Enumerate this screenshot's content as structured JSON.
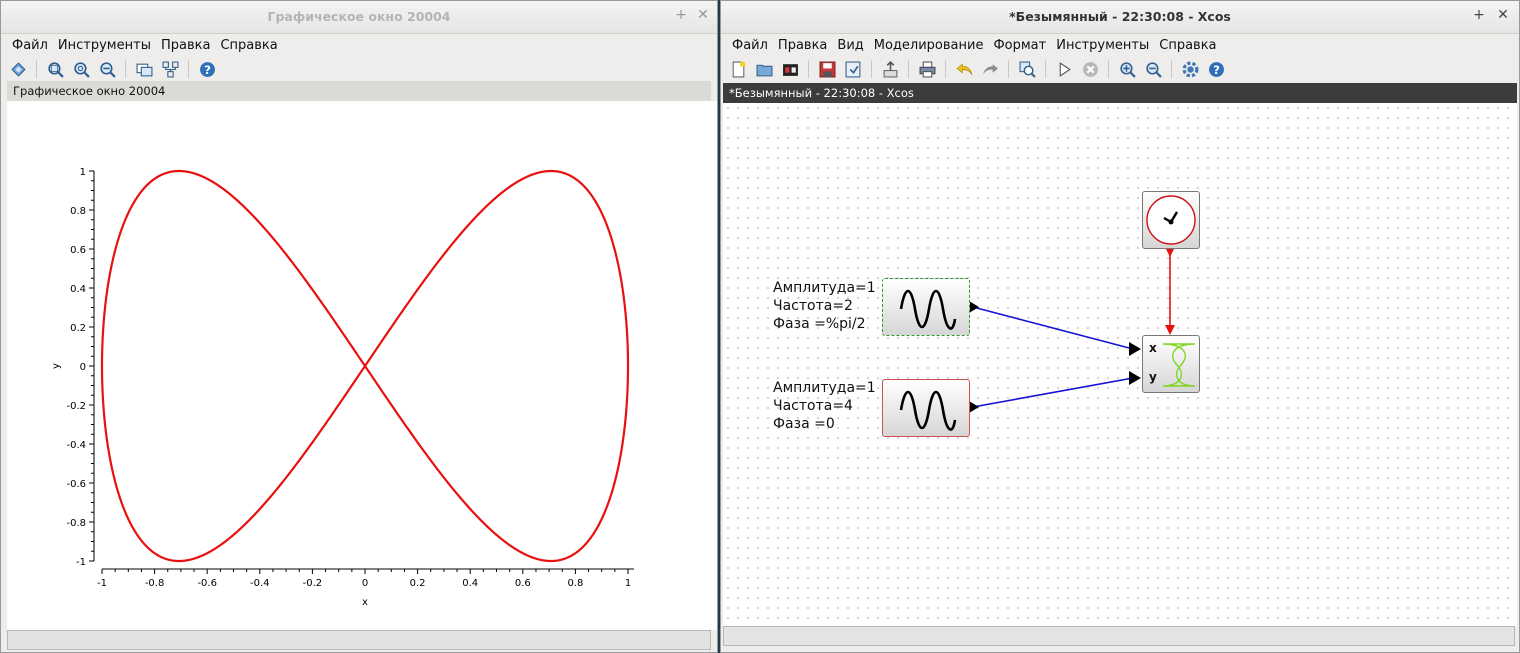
{
  "left_window": {
    "title": "Графическое окно 20004",
    "menu": [
      "Файл",
      "Инструменты",
      "Правка",
      "Справка"
    ],
    "toolbar_icons": [
      "rotate-icon",
      "zoom-in-icon",
      "zoom-reset-icon",
      "zoom-out-icon",
      "separator",
      "datatip-icon",
      "tree-icon",
      "separator",
      "help-icon"
    ],
    "info_label": "Графическое окно 20004",
    "chart_data": {
      "type": "line",
      "title": "",
      "xlabel": "x",
      "ylabel": "y",
      "xlim": [
        -1,
        1
      ],
      "ylim": [
        -1,
        1
      ],
      "x_ticks": [
        "-1",
        "-0.8",
        "-0.6",
        "-0.4",
        "-0.2",
        "0",
        "0.2",
        "0.4",
        "0.6",
        "0.8",
        "1"
      ],
      "y_ticks": [
        "1",
        "0.8",
        "0.6",
        "0.4",
        "0.2",
        "0",
        "-0.2",
        "-0.4",
        "-0.6",
        "-0.8",
        "-1"
      ],
      "grid": false,
      "series": [
        {
          "x_expr": "sin(2t + pi/2)",
          "y_expr": "sin(4t)",
          "color": "#e8110f"
        }
      ]
    }
  },
  "right_window": {
    "title": "*Безымянный - 22:30:08 - Xcos",
    "menu": [
      "Файл",
      "Правка",
      "Вид",
      "Моделирование",
      "Формат",
      "Инструменты",
      "Справка"
    ],
    "toolbar_icons": [
      "new-icon",
      "open-icon",
      "open-scilab-icon",
      "separator",
      "save-icon",
      "save-as-icon",
      "separator",
      "export-icon",
      "separator",
      "print-icon",
      "separator",
      "undo-icon",
      "redo-icon",
      "separator",
      "zoom-fit-icon",
      "separator",
      "start-icon",
      "stop-icon",
      "separator",
      "zoom-in-icon",
      "zoom-out-icon",
      "separator",
      "settings-icon",
      "help-icon"
    ],
    "info_label": "*Безымянный - 22:30:08 - Xcos",
    "blocks": {
      "sine1": {
        "params": [
          "Амплитуда=1",
          "Частота=2",
          "Фаза =%pi/2"
        ]
      },
      "sine2": {
        "params": [
          "Амплитуда=1",
          "Частота=4",
          "Фаза =0"
        ]
      },
      "scope": {
        "port_x": "x",
        "port_y": "y"
      }
    },
    "colors": {
      "data_link": "#1414d4",
      "event_link": "#e8110f",
      "curve_icon": "#7fd61e"
    }
  }
}
